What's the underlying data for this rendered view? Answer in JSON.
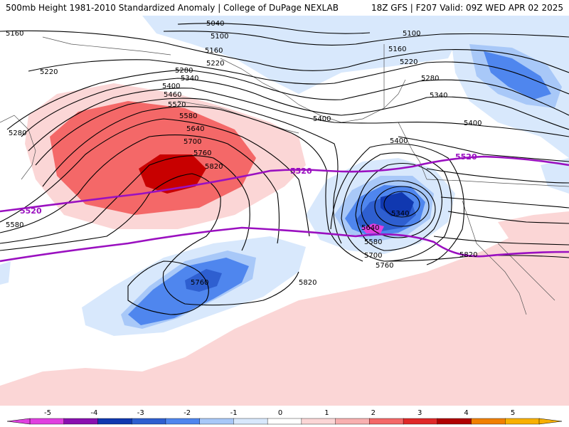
{
  "header": {
    "title_left": "500mb Height 1981-2010 Standardized Anomaly | College of DuPage NEXLAB",
    "title_right": "18Z GFS | F207 Valid: 09Z WED APR 02 2025"
  },
  "contour_labels": [
    "5040",
    "5100",
    "5160",
    "5220",
    "5280",
    "5340",
    "5400",
    "5460",
    "5520",
    "5580",
    "5640",
    "5700",
    "5760",
    "5820"
  ],
  "highlight_contour": "5520",
  "colorbar": {
    "ticks": [
      "-5",
      "-4",
      "-3",
      "-2",
      "-1",
      "0",
      "1",
      "2",
      "3",
      "4",
      "5"
    ],
    "colors": [
      "#e040e0",
      "#8a10b0",
      "#1038b0",
      "#2e5fd0",
      "#4f86ee",
      "#a8c8f8",
      "#d8e8fc",
      "#ffffff",
      "#fbd6d6",
      "#f8b0b0",
      "#f46868",
      "#e02828",
      "#b00000",
      "#f08000",
      "#f8b000"
    ]
  },
  "colors": {
    "positive_anomaly": [
      "#fbd6d6",
      "#f8b0b0",
      "#f46868",
      "#c80000"
    ],
    "negative_anomaly": [
      "#d8e8fc",
      "#a8c8f8",
      "#4f86ee",
      "#2e5fd0",
      "#1038b0"
    ],
    "contour": "#000000",
    "highlight": "#9a10c0"
  },
  "icons": {
    "colorbar_left_arrow": "triangle-left",
    "colorbar_right_arrow": "triangle-right"
  }
}
